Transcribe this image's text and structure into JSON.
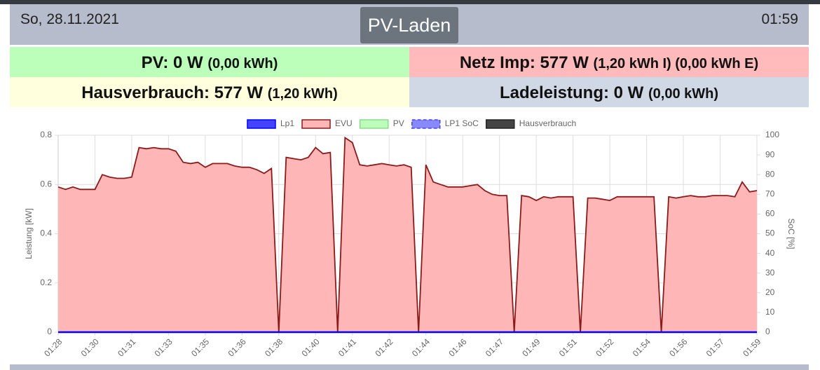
{
  "header": {
    "date": "So, 28.11.2021",
    "button": "PV-Laden",
    "time": "01:59"
  },
  "tiles": [
    {
      "label": "PV: 0 W",
      "detail": "(0,00 kWh)"
    },
    {
      "label": "Netz Imp: 577 W",
      "detail": "(1,20 kWh I) (0,00 kWh E)"
    },
    {
      "label": "Hausverbrauch: 577 W",
      "detail": "(1,20 kWh)"
    },
    {
      "label": "Ladeleistung: 0 W",
      "detail": "(0,00 kWh)"
    }
  ],
  "chart_data": {
    "type": "area",
    "ylabel": "Leistung [kW]",
    "y2label": "SoC [%]",
    "ylim": [
      0,
      0.8
    ],
    "yticks": [
      0,
      0.2,
      0.4,
      0.6,
      0.8
    ],
    "y2lim": [
      0,
      100
    ],
    "y2ticks": [
      0,
      10,
      20,
      30,
      40,
      50,
      60,
      70,
      80,
      90,
      100
    ],
    "grid": true,
    "categories": [
      "01:28",
      null,
      null,
      null,
      null,
      "01:30",
      null,
      null,
      null,
      null,
      "01:31",
      null,
      null,
      null,
      null,
      "01:33",
      null,
      null,
      null,
      null,
      "01:35",
      null,
      null,
      null,
      null,
      "01:36",
      null,
      null,
      null,
      null,
      "01:38",
      null,
      null,
      null,
      null,
      "01:40",
      null,
      null,
      null,
      null,
      "01:41",
      null,
      null,
      null,
      null,
      "01:42",
      null,
      null,
      null,
      null,
      "01:44",
      null,
      null,
      null,
      null,
      "01:46",
      null,
      null,
      null,
      null,
      "01:47",
      null,
      null,
      null,
      null,
      "01:49",
      null,
      null,
      null,
      null,
      "01:51",
      null,
      null,
      null,
      null,
      "01:52",
      null,
      null,
      null,
      null,
      "01:54",
      null,
      null,
      null,
      null,
      "01:56",
      null,
      null,
      null,
      null,
      "01:57",
      null,
      null,
      null,
      null,
      "01:59"
    ],
    "series": [
      {
        "name": "Lp1",
        "color": "#0000ff",
        "fill": "#4444ff",
        "values": [
          0,
          0,
          0,
          0,
          0,
          0,
          0,
          0,
          0,
          0,
          0,
          0,
          0,
          0,
          0,
          0,
          0,
          0,
          0,
          0,
          0,
          0,
          0,
          0,
          0,
          0,
          0,
          0,
          0,
          0,
          0,
          0,
          0,
          0,
          0,
          0,
          0,
          0,
          0,
          0,
          0,
          0,
          0,
          0,
          0,
          0,
          0,
          0,
          0,
          0,
          0,
          0,
          0,
          0,
          0,
          0,
          0,
          0,
          0,
          0,
          0,
          0,
          0,
          0,
          0,
          0,
          0,
          0,
          0,
          0,
          0,
          0,
          0,
          0,
          0,
          0,
          0,
          0,
          0,
          0,
          0,
          0,
          0,
          0,
          0,
          0,
          0,
          0,
          0,
          0,
          0,
          0,
          0,
          0,
          0,
          0
        ]
      },
      {
        "name": "EVU",
        "color": "#8b1a1a",
        "fill": "#ffb6b6",
        "values": [
          0.59,
          0.58,
          0.59,
          0.58,
          0.58,
          0.58,
          0.64,
          0.63,
          0.625,
          0.625,
          0.63,
          0.75,
          0.745,
          0.75,
          0.745,
          0.745,
          0.735,
          0.69,
          0.685,
          0.69,
          0.67,
          0.685,
          0.685,
          0.685,
          0.675,
          0.67,
          0.67,
          0.66,
          0.645,
          0.665,
          0,
          0.71,
          0.705,
          0.7,
          0.71,
          0.75,
          0.725,
          0.73,
          0,
          0.79,
          0.77,
          0.68,
          0.675,
          0.68,
          0.685,
          0.68,
          0.675,
          0.68,
          0.67,
          0,
          0.68,
          0.61,
          0.6,
          0.59,
          0.59,
          0.59,
          0.595,
          0.6,
          0.575,
          0.56,
          0.555,
          0.555,
          0,
          0.555,
          0.55,
          0.535,
          0.55,
          0.545,
          0.55,
          0.55,
          0.55,
          0,
          0.545,
          0.545,
          0.54,
          0.535,
          0.55,
          0.55,
          0.55,
          0.55,
          0.55,
          0.55,
          0,
          0.55,
          0.545,
          0.55,
          0.555,
          0.55,
          0.55,
          0.555,
          0.555,
          0.555,
          0.55,
          0.61,
          0.57,
          0.575
        ]
      },
      {
        "name": "PV",
        "color": "#88dd88",
        "fill": "#bbffbb"
      },
      {
        "name": "LP1 SoC",
        "color": "#4444ff",
        "fill": "#8888ff",
        "axis": "y2",
        "dashed": true
      },
      {
        "name": "Hausverbrauch",
        "color": "#222222",
        "fill": "#444444"
      }
    ]
  }
}
